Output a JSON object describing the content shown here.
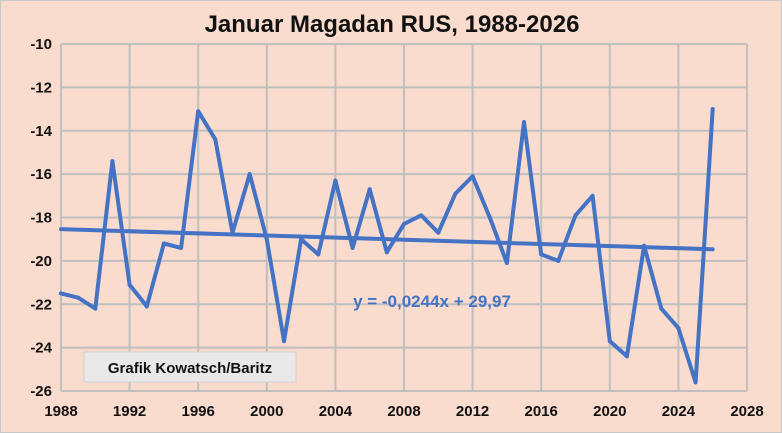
{
  "chart_data": {
    "type": "line",
    "title": "Januar Magadan RUS, 1988-2026",
    "xlabel": "",
    "ylabel": "",
    "xlim": [
      1988,
      2028
    ],
    "ylim": [
      -26,
      -10
    ],
    "x_ticks": [
      1988,
      1992,
      1996,
      2000,
      2004,
      2008,
      2012,
      2016,
      2020,
      2024,
      2028
    ],
    "y_ticks": [
      -10,
      -12,
      -14,
      -16,
      -18,
      -20,
      -22,
      -24,
      -26
    ],
    "grid": true,
    "series": [
      {
        "x": [
          1988,
          1989,
          1990,
          1991,
          1992,
          1993,
          1994,
          1995,
          1996,
          1997,
          1998,
          1999,
          2000,
          2001,
          2002,
          2003,
          2004,
          2005,
          2006,
          2007,
          2008,
          2009,
          2010,
          2011,
          2012,
          2013,
          2014,
          2015,
          2016,
          2017,
          2018,
          2019,
          2020,
          2021,
          2022,
          2023,
          2024,
          2025,
          2026
        ],
        "values": [
          -21.5,
          -21.7,
          -22.2,
          -15.4,
          -21.1,
          -22.1,
          -19.2,
          -19.4,
          -13.1,
          -14.4,
          -18.7,
          -16.0,
          -19.0,
          -23.7,
          -19.0,
          -19.7,
          -16.3,
          -19.4,
          -16.7,
          -19.6,
          -18.3,
          -17.9,
          -18.7,
          -16.9,
          -16.1,
          -18.0,
          -20.1,
          -13.6,
          -19.7,
          -20.0,
          -17.9,
          -17.0,
          -23.7,
          -24.4,
          -19.3,
          -22.2,
          -23.1,
          -25.6,
          -13.0
        ]
      }
    ],
    "trendline": {
      "slope": -0.0244,
      "intercept": 29.97,
      "equation_label": "y = -0,0244x + 29,97"
    },
    "annotation": "Grafik Kowatsch/Baritz",
    "colors": {
      "background": "#f9dccd",
      "line": "#4472c4",
      "trend": "#4472c4",
      "grid": "#bfbfbf",
      "equation": "#4472c4"
    }
  }
}
